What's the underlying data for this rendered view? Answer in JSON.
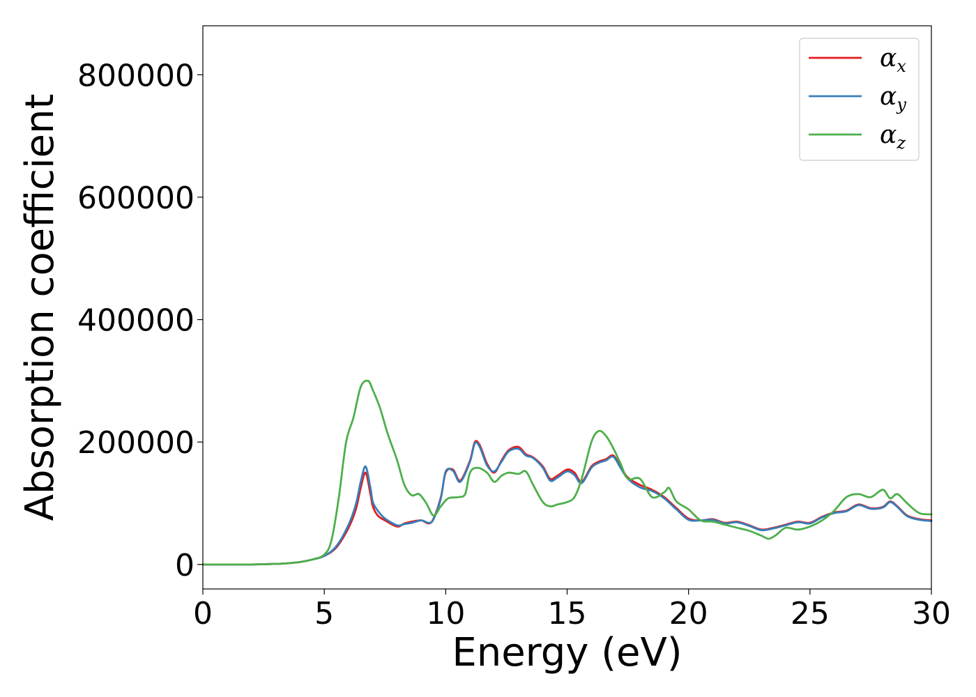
{
  "chart_data": {
    "type": "line",
    "xlabel": "Energy (eV)",
    "ylabel": "Absorption coefficient",
    "xlim": [
      0,
      30
    ],
    "ylim": [
      -40000,
      880000
    ],
    "xticks": [
      0,
      5,
      10,
      15,
      20,
      25,
      30
    ],
    "xtick_labels": [
      "0",
      "5",
      "10",
      "15",
      "20",
      "25",
      "30"
    ],
    "yticks": [
      0,
      200000,
      400000,
      600000,
      800000
    ],
    "ytick_labels": [
      "0",
      "200000",
      "400000",
      "600000",
      "800000"
    ],
    "grid": false,
    "legend_position": "top-right",
    "series": [
      {
        "name": "αx",
        "legend_base": "α",
        "legend_sub": "x",
        "color": "#e41a1c",
        "x": [
          0,
          1,
          2,
          3,
          3.5,
          4,
          4.5,
          5,
          5.5,
          6,
          6.3,
          6.5,
          6.7,
          6.9,
          7,
          7.2,
          7.5,
          8,
          8.3,
          8.6,
          9,
          9.3,
          9.5,
          9.8,
          10,
          10.3,
          10.6,
          11,
          11.2,
          11.4,
          11.7,
          12,
          12.3,
          12.6,
          13,
          13.3,
          13.6,
          14,
          14.3,
          14.6,
          15,
          15.3,
          15.6,
          16,
          16.3,
          16.6,
          16.9,
          17.2,
          17.5,
          18,
          18.5,
          19,
          19.5,
          20,
          20.5,
          21,
          21.5,
          22,
          22.5,
          23,
          23.5,
          24,
          24.5,
          25,
          25.5,
          26,
          26.5,
          27,
          27.5,
          28,
          28.3,
          28.6,
          29,
          29.5,
          30
        ],
        "values": [
          0,
          0,
          0,
          1000,
          2000,
          4000,
          8000,
          14000,
          28000,
          60000,
          90000,
          125000,
          150000,
          115000,
          95000,
          80000,
          72000,
          62000,
          67000,
          70000,
          72000,
          67000,
          75000,
          110000,
          150000,
          155000,
          137000,
          170000,
          200000,
          195000,
          165000,
          150000,
          170000,
          187000,
          192000,
          180000,
          175000,
          160000,
          140000,
          145000,
          155000,
          150000,
          135000,
          160000,
          168000,
          172000,
          178000,
          160000,
          142000,
          130000,
          122000,
          110000,
          92000,
          75000,
          72000,
          74000,
          68000,
          70000,
          64000,
          57000,
          60000,
          65000,
          70000,
          68000,
          78000,
          85000,
          88000,
          98000,
          92000,
          94000,
          103000,
          95000,
          80000,
          74000,
          72000
        ]
      },
      {
        "name": "αy",
        "legend_base": "α",
        "legend_sub": "y",
        "color": "#377eb8",
        "x": [
          0,
          1,
          2,
          3,
          3.5,
          4,
          4.5,
          5,
          5.5,
          6,
          6.3,
          6.5,
          6.7,
          6.9,
          7,
          7.2,
          7.5,
          8,
          8.3,
          8.6,
          9,
          9.3,
          9.5,
          9.8,
          10,
          10.3,
          10.6,
          11,
          11.2,
          11.4,
          11.7,
          12,
          12.3,
          12.6,
          13,
          13.3,
          13.6,
          14,
          14.3,
          14.6,
          15,
          15.3,
          15.6,
          16,
          16.3,
          16.6,
          16.9,
          17.2,
          17.5,
          18,
          18.5,
          19,
          19.5,
          20,
          20.5,
          21,
          21.5,
          22,
          22.5,
          23,
          23.5,
          24,
          24.5,
          25,
          25.5,
          26,
          26.5,
          27,
          27.5,
          28,
          28.3,
          28.6,
          29,
          29.5,
          30
        ],
        "values": [
          0,
          0,
          0,
          1000,
          2000,
          4000,
          8000,
          14000,
          30000,
          65000,
          98000,
          135000,
          160000,
          125000,
          102000,
          88000,
          75000,
          64000,
          66000,
          68000,
          72000,
          68000,
          74000,
          108000,
          152000,
          153000,
          135000,
          168000,
          198000,
          192000,
          162000,
          152000,
          168000,
          185000,
          189000,
          178000,
          174000,
          158000,
          137000,
          142000,
          152000,
          146000,
          133000,
          158000,
          166000,
          170000,
          176000,
          158000,
          140000,
          126000,
          120000,
          108000,
          90000,
          73000,
          72000,
          73000,
          67000,
          69000,
          63000,
          56000,
          59000,
          64000,
          69000,
          67000,
          77000,
          84000,
          87000,
          97000,
          91000,
          93000,
          102000,
          94000,
          79000,
          73000,
          71000
        ]
      },
      {
        "name": "αz",
        "legend_base": "α",
        "legend_sub": "z",
        "color": "#4daf4a",
        "x": [
          0,
          1,
          2,
          3,
          3.5,
          4,
          4.5,
          5,
          5.3,
          5.6,
          5.9,
          6.2,
          6.5,
          6.8,
          7,
          7.3,
          7.6,
          8,
          8.3,
          8.6,
          8.9,
          9.2,
          9.5,
          9.8,
          10.1,
          10.5,
          10.8,
          11,
          11.3,
          11.7,
          12,
          12.3,
          12.6,
          13,
          13.3,
          13.6,
          14,
          14.3,
          14.6,
          15,
          15.3,
          15.6,
          16,
          16.3,
          16.6,
          16.9,
          17.2,
          17.5,
          18,
          18.5,
          19,
          19.2,
          19.5,
          20,
          20.5,
          21,
          21.5,
          22,
          22.5,
          23,
          23.3,
          23.6,
          24,
          24.5,
          25,
          25.5,
          26,
          26.5,
          27,
          27.5,
          28,
          28.3,
          28.6,
          29,
          29.5,
          30
        ],
        "values": [
          0,
          0,
          0,
          1000,
          2000,
          4000,
          8000,
          16000,
          40000,
          110000,
          200000,
          240000,
          290000,
          300000,
          285000,
          255000,
          215000,
          170000,
          130000,
          113000,
          115000,
          100000,
          80000,
          95000,
          108000,
          110000,
          115000,
          150000,
          158000,
          150000,
          135000,
          145000,
          150000,
          148000,
          152000,
          130000,
          102000,
          95000,
          98000,
          102000,
          110000,
          140000,
          200000,
          218000,
          210000,
          190000,
          165000,
          140000,
          140000,
          110000,
          118000,
          125000,
          103000,
          90000,
          72000,
          70000,
          65000,
          60000,
          55000,
          47000,
          42000,
          48000,
          60000,
          57000,
          62000,
          72000,
          88000,
          110000,
          115000,
          110000,
          122000,
          108000,
          115000,
          100000,
          84000,
          82000
        ]
      }
    ]
  }
}
